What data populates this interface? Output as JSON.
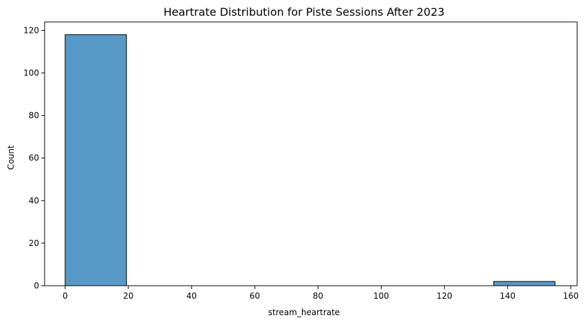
{
  "chart_data": {
    "type": "bar",
    "title": "Heartrate Distribution for Piste Sessions After 2023",
    "xlabel": "stream_heartrate",
    "ylabel": "Count",
    "xlim": [
      -6.5,
      162
    ],
    "ylim": [
      0,
      124
    ],
    "xticks": [
      0,
      20,
      40,
      60,
      80,
      100,
      120,
      140,
      160
    ],
    "yticks": [
      0,
      20,
      40,
      60,
      80,
      100,
      120
    ],
    "bins": [
      {
        "x0": 0,
        "x1": 19.4,
        "count": 118
      },
      {
        "x0": 135.6,
        "x1": 155,
        "count": 2
      }
    ],
    "colors": {
      "bar": "#5799c7",
      "edge": "#000000"
    },
    "grid": false,
    "legend": "none"
  }
}
